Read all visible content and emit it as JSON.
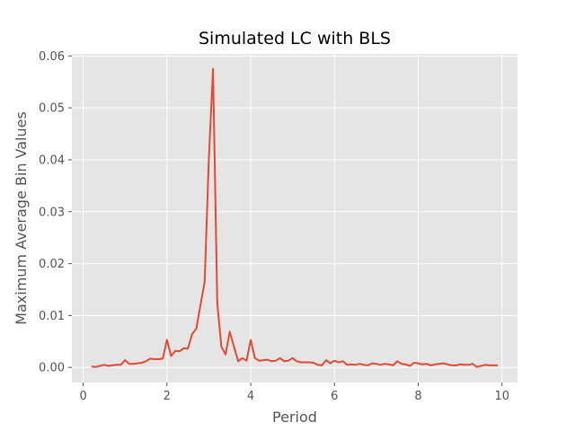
{
  "chart_data": {
    "type": "line",
    "title": "Simulated LC with BLS",
    "xlabel": "Period",
    "ylabel": "Maximum Average Bin Values",
    "xlim": [
      -0.27,
      10.37
    ],
    "ylim": [
      -0.0029,
      0.0604
    ],
    "xticks": [
      "0",
      "2",
      "4",
      "6",
      "8",
      "10"
    ],
    "xtick_values": [
      0,
      2,
      4,
      6,
      8,
      10
    ],
    "yticks": [
      "0.00",
      "0.01",
      "0.02",
      "0.03",
      "0.04",
      "0.05",
      "0.06"
    ],
    "ytick_values": [
      0,
      0.01,
      0.02,
      0.03,
      0.04,
      0.05,
      0.06
    ],
    "grid": true,
    "legend": "none",
    "colors": {
      "line": "#E24A33",
      "background": "#E5E5E5",
      "grid": "#FFFFFF",
      "text": "#555555"
    },
    "series": [
      {
        "x": [
          0.2,
          0.3,
          0.4,
          0.5,
          0.6,
          0.7,
          0.8,
          0.9,
          1.0,
          1.1,
          1.2,
          1.3,
          1.4,
          1.5,
          1.6,
          1.7,
          1.8,
          1.9,
          2.0,
          2.1,
          2.2,
          2.3,
          2.4,
          2.5,
          2.6,
          2.7,
          2.8,
          2.9,
          3.0,
          3.1,
          3.2,
          3.3,
          3.4,
          3.5,
          3.6,
          3.7,
          3.8,
          3.9,
          4.0,
          4.1,
          4.2,
          4.3,
          4.4,
          4.5,
          4.6,
          4.7,
          4.8,
          4.9,
          5.0,
          5.1,
          5.2,
          5.3,
          5.4,
          5.5,
          5.6,
          5.7,
          5.8,
          5.9,
          6.0,
          6.1,
          6.2,
          6.3,
          6.4,
          6.5,
          6.6,
          6.7,
          6.8,
          6.9,
          7.0,
          7.1,
          7.2,
          7.3,
          7.4,
          7.5,
          7.6,
          7.7,
          7.8,
          7.9,
          8.0,
          8.1,
          8.2,
          8.3,
          8.4,
          8.5,
          8.6,
          8.7,
          8.8,
          8.9,
          9.0,
          9.1,
          9.2,
          9.3,
          9.4,
          9.5,
          9.6,
          9.7,
          9.8,
          9.9
        ],
        "y": [
          0.0002,
          0.0001,
          0.0003,
          0.0005,
          0.0003,
          0.0004,
          0.0005,
          0.0005,
          0.0014,
          0.0007,
          0.0007,
          0.0008,
          0.0009,
          0.0012,
          0.0017,
          0.0016,
          0.0016,
          0.0017,
          0.0053,
          0.0022,
          0.0032,
          0.0031,
          0.0037,
          0.0036,
          0.0064,
          0.0075,
          0.012,
          0.0165,
          0.04,
          0.0575,
          0.0125,
          0.004,
          0.0025,
          0.0069,
          0.004,
          0.0012,
          0.0018,
          0.0013,
          0.0053,
          0.0018,
          0.0013,
          0.0014,
          0.0015,
          0.0012,
          0.0013,
          0.0018,
          0.0012,
          0.0013,
          0.0018,
          0.0012,
          0.001,
          0.001,
          0.001,
          0.0009,
          0.0005,
          0.0004,
          0.0014,
          0.0008,
          0.0013,
          0.001,
          0.0012,
          0.0005,
          0.0006,
          0.0005,
          0.0007,
          0.0005,
          0.0004,
          0.0008,
          0.0007,
          0.0005,
          0.0007,
          0.0006,
          0.0004,
          0.0012,
          0.0007,
          0.0006,
          0.0003,
          0.0009,
          0.0008,
          0.0006,
          0.0007,
          0.0004,
          0.0006,
          0.0007,
          0.0008,
          0.0006,
          0.0004,
          0.0004,
          0.0006,
          0.0005,
          0.0005,
          0.0007,
          0.0001,
          0.0003,
          0.0005,
          0.0004,
          0.0004,
          0.0004
        ]
      }
    ]
  }
}
